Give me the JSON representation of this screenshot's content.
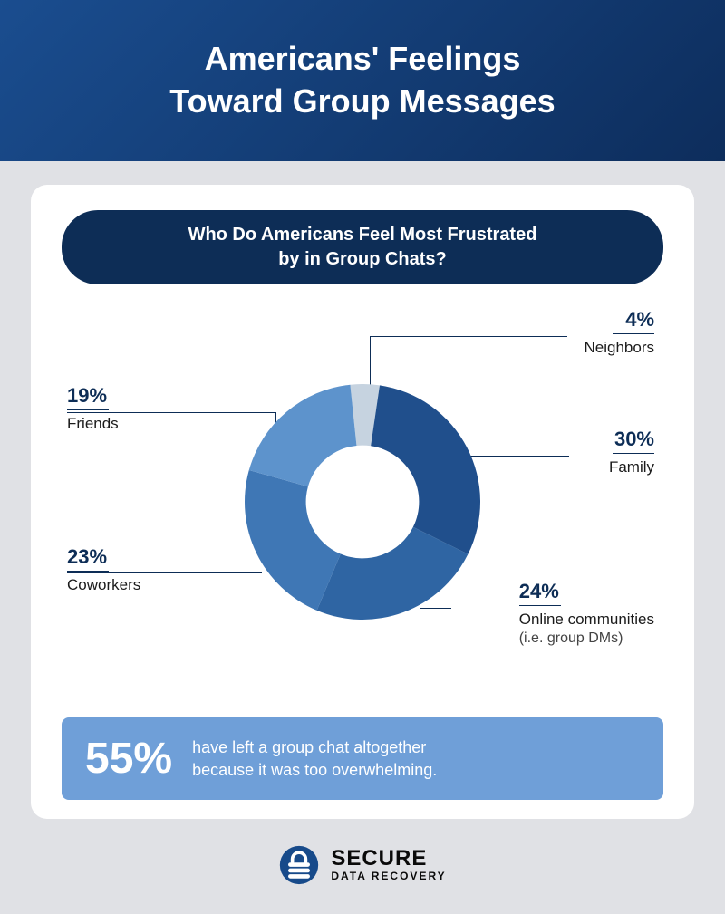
{
  "header": {
    "title_line1": "Americans' Feelings",
    "title_line2": "Toward Group Messages",
    "bg_gradient_from": "#1a4d8f",
    "bg_gradient_to": "#0d2d5c",
    "title_fontsize": 36,
    "title_color": "#ffffff"
  },
  "outer_bg": "#e0e1e5",
  "card_bg": "#ffffff",
  "pill": {
    "line1": "Who Do Americans Feel Most Frustrated",
    "line2": "by in Group Chats?",
    "bg": "#0d2d56",
    "color": "#ffffff",
    "fontsize": 20
  },
  "donut": {
    "type": "pie",
    "inner_radius_ratio": 0.48,
    "start_angle_deg": -6,
    "direction": "clockwise",
    "slices": [
      {
        "key": "neighbors",
        "value": 4,
        "color": "#c6d3e0",
        "label": "Neighbors",
        "pct_text": "4%"
      },
      {
        "key": "family",
        "value": 30,
        "color": "#204f8c",
        "label": "Family",
        "pct_text": "30%"
      },
      {
        "key": "online",
        "value": 24,
        "color": "#2f65a3",
        "label": "Online communities",
        "sublabel": "(i.e. group DMs)",
        "pct_text": "24%"
      },
      {
        "key": "coworkers",
        "value": 23,
        "color": "#3f77b5",
        "label": "Coworkers",
        "pct_text": "23%"
      },
      {
        "key": "friends",
        "value": 19,
        "color": "#5d93cc",
        "label": "Friends",
        "pct_text": "19%"
      }
    ],
    "label_pct_color": "#0d2d56",
    "label_pct_fontsize": 22,
    "label_name_fontsize": 17,
    "leader_color": "#0d2d56"
  },
  "stat": {
    "big": "55%",
    "line1": "have left a group chat altogether",
    "line2": "because it was too overwhelming.",
    "bg": "#6f9fd8",
    "color": "#ffffff",
    "big_fontsize": 48,
    "desc_fontsize": 18
  },
  "footer": {
    "brand_line1": "SECURE",
    "brand_line2": "DATA RECOVERY",
    "mark_color": "#174a8a"
  }
}
